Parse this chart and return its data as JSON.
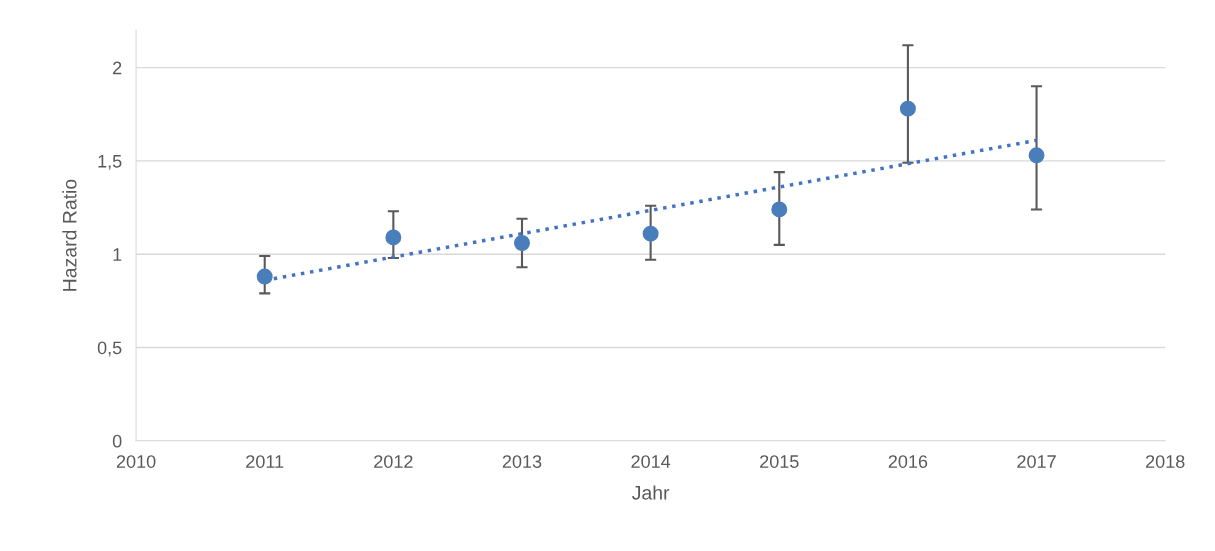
{
  "chart_data": {
    "type": "scatter",
    "xlabel": "Jahr",
    "ylabel": "Hazard Ratio",
    "xlim": [
      2010,
      2018
    ],
    "xticks": [
      2010,
      2011,
      2012,
      2013,
      2014,
      2015,
      2016,
      2017,
      2018
    ],
    "ylim": [
      0,
      2.2
    ],
    "yticks": [
      {
        "value": 0,
        "label": "0"
      },
      {
        "value": 0.5,
        "label": "0,5"
      },
      {
        "value": 1,
        "label": "1"
      },
      {
        "value": 1.5,
        "label": "1,5"
      },
      {
        "value": 2,
        "label": "2"
      }
    ],
    "grid": "y",
    "legend": false,
    "marker": "circle",
    "series": [
      {
        "color": "#4a7ebb",
        "x": [
          2011,
          2012,
          2013,
          2014,
          2015,
          2016,
          2017
        ],
        "values": [
          0.88,
          1.09,
          1.06,
          1.11,
          1.24,
          1.78,
          1.53
        ],
        "errors": [
          [
            0.79,
            0.99
          ],
          [
            0.98,
            1.23
          ],
          [
            0.93,
            1.19
          ],
          [
            0.97,
            1.26
          ],
          [
            1.05,
            1.44
          ],
          [
            1.49,
            2.12
          ],
          [
            1.24,
            1.9
          ]
        ]
      },
      {
        "type": "line",
        "color": "#4472c4",
        "line_style": "dotted",
        "marker": "none",
        "x": [
          2011,
          2017
        ],
        "values": [
          0.86,
          1.61
        ]
      }
    ]
  }
}
